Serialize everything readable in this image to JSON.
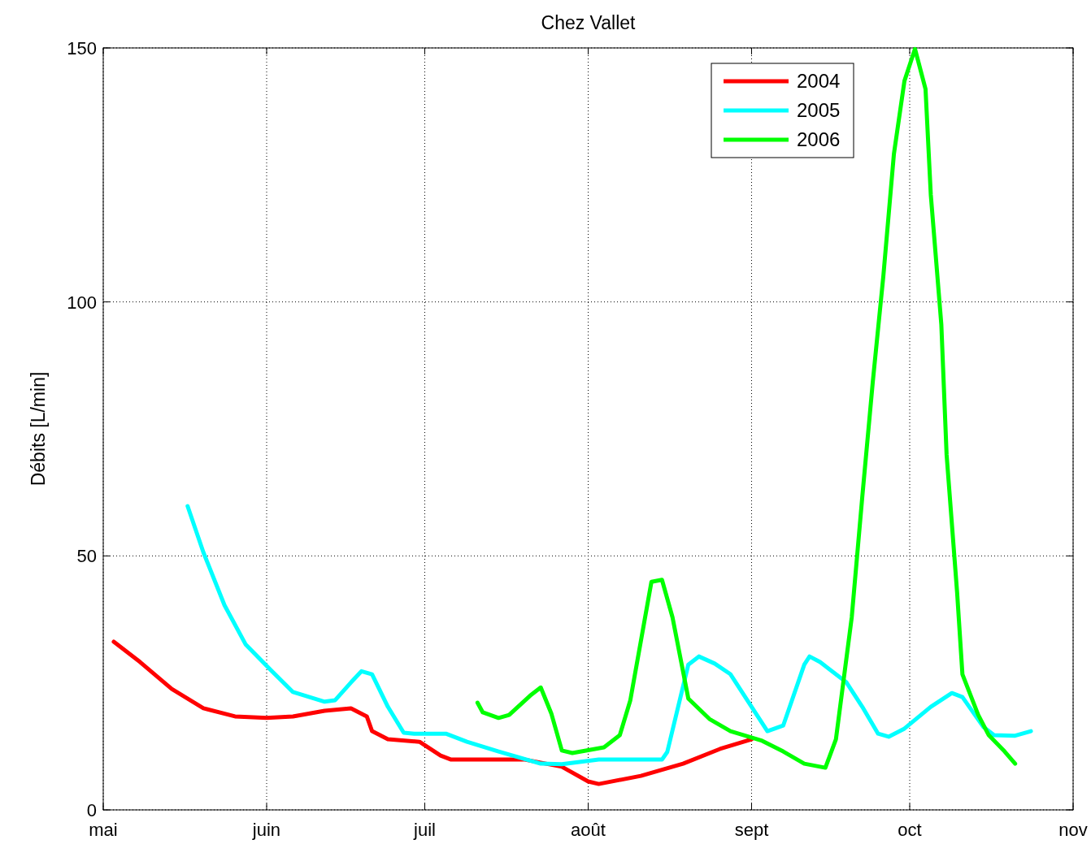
{
  "chart_data": {
    "type": "line",
    "title": "Chez Vallet",
    "ylabel": "Débits [L/min]",
    "xlim": [
      "--05-01",
      "--11-01"
    ],
    "xticks": [
      {
        "value": "--05-01",
        "label": "mai"
      },
      {
        "value": "--06-01",
        "label": "juin"
      },
      {
        "value": "--07-01",
        "label": "juil"
      },
      {
        "value": "--08-01",
        "label": "août"
      },
      {
        "value": "--09-01",
        "label": "sept"
      },
      {
        "value": "--10-01",
        "label": "oct"
      },
      {
        "value": "--11-01",
        "label": "nov"
      }
    ],
    "ylim": [
      0,
      150
    ],
    "yticks": [
      0,
      50,
      100,
      150
    ],
    "grid": true,
    "legend": "top right",
    "line_style": "solid",
    "series": [
      {
        "name": "2004",
        "color": "#ff0000",
        "x": [
          "--05-03",
          "--05-08",
          "--05-14",
          "--05-20",
          "--05-26",
          "--06-01",
          "--06-06",
          "--06-12",
          "--06-17",
          "--06-20",
          "--06-21",
          "--06-24",
          "--06-30",
          "--07-04",
          "--07-06",
          "--07-20",
          "--07-27",
          "--08-01",
          "--08-03",
          "--08-11",
          "--08-19",
          "--08-26",
          "--09-01"
        ],
        "values": [
          33.1,
          29.1,
          23.8,
          20.0,
          18.4,
          18.1,
          18.4,
          19.5,
          20.0,
          18.4,
          15.5,
          13.9,
          13.4,
          10.7,
          9.9,
          9.9,
          8.5,
          5.6,
          5.1,
          6.7,
          9.1,
          12.0,
          13.9
        ]
      },
      {
        "name": "2005",
        "color": "#00ffff",
        "x": [
          "--05-17",
          "--05-20",
          "--05-24",
          "--05-28",
          "--06-02",
          "--06-06",
          "--06-12",
          "--06-14",
          "--06-17",
          "--06-19",
          "--06-21",
          "--06-24",
          "--06-27",
          "--06-29",
          "--07-05",
          "--07-09",
          "--07-15",
          "--07-23",
          "--07-27",
          "--08-03",
          "--08-15",
          "--08-16",
          "--08-20",
          "--08-22",
          "--08-25",
          "--08-28",
          "--09-02",
          "--09-04",
          "--09-07",
          "--09-11",
          "--09-12",
          "--09-14",
          "--09-19",
          "--09-22",
          "--09-25",
          "--09-27",
          "--09-30",
          "--10-05",
          "--10-09",
          "--10-11",
          "--10-15",
          "--10-17",
          "--10-21",
          "--10-24"
        ],
        "values": [
          59.8,
          50.7,
          40.3,
          32.6,
          27.3,
          23.2,
          21.3,
          21.6,
          25.1,
          27.3,
          26.7,
          20.3,
          15.2,
          15.0,
          15.0,
          13.4,
          11.5,
          9.1,
          9.0,
          9.9,
          9.9,
          11.4,
          28.6,
          30.2,
          28.8,
          26.7,
          18.7,
          15.5,
          16.6,
          28.6,
          30.2,
          29.1,
          25.1,
          20.3,
          15.0,
          14.4,
          16.0,
          20.3,
          23.0,
          22.2,
          16.3,
          14.7,
          14.6,
          15.5
        ]
      },
      {
        "name": "2006",
        "color": "#00ff00",
        "x": [
          "--07-11",
          "--07-12",
          "--07-15",
          "--07-17",
          "--07-21",
          "--07-23",
          "--07-25",
          "--07-27",
          "--07-29",
          "--08-04",
          "--08-07",
          "--08-09",
          "--08-13",
          "--08-15",
          "--08-17",
          "--08-20",
          "--08-24",
          "--08-28",
          "--09-03",
          "--09-07",
          "--09-11",
          "--09-15",
          "--09-17",
          "--09-20",
          "--09-22",
          "--09-24",
          "--09-26",
          "--09-28",
          "--09-30",
          "--10-02",
          "--10-04",
          "--10-05",
          "--10-07",
          "--10-08",
          "--10-10",
          "--10-11",
          "--10-14",
          "--10-16",
          "--10-19",
          "--10-21"
        ],
        "values": [
          21.1,
          19.2,
          18.1,
          18.7,
          22.5,
          24.1,
          19.0,
          11.7,
          11.2,
          12.3,
          14.7,
          21.6,
          44.9,
          45.3,
          37.9,
          21.9,
          17.9,
          15.5,
          13.6,
          11.5,
          9.1,
          8.3,
          13.9,
          37.9,
          61.6,
          84.3,
          105.1,
          129.1,
          143.5,
          149.8,
          141.9,
          121.1,
          95.5,
          69.9,
          42.7,
          26.7,
          18.7,
          14.7,
          11.5,
          9.1
        ]
      }
    ]
  }
}
